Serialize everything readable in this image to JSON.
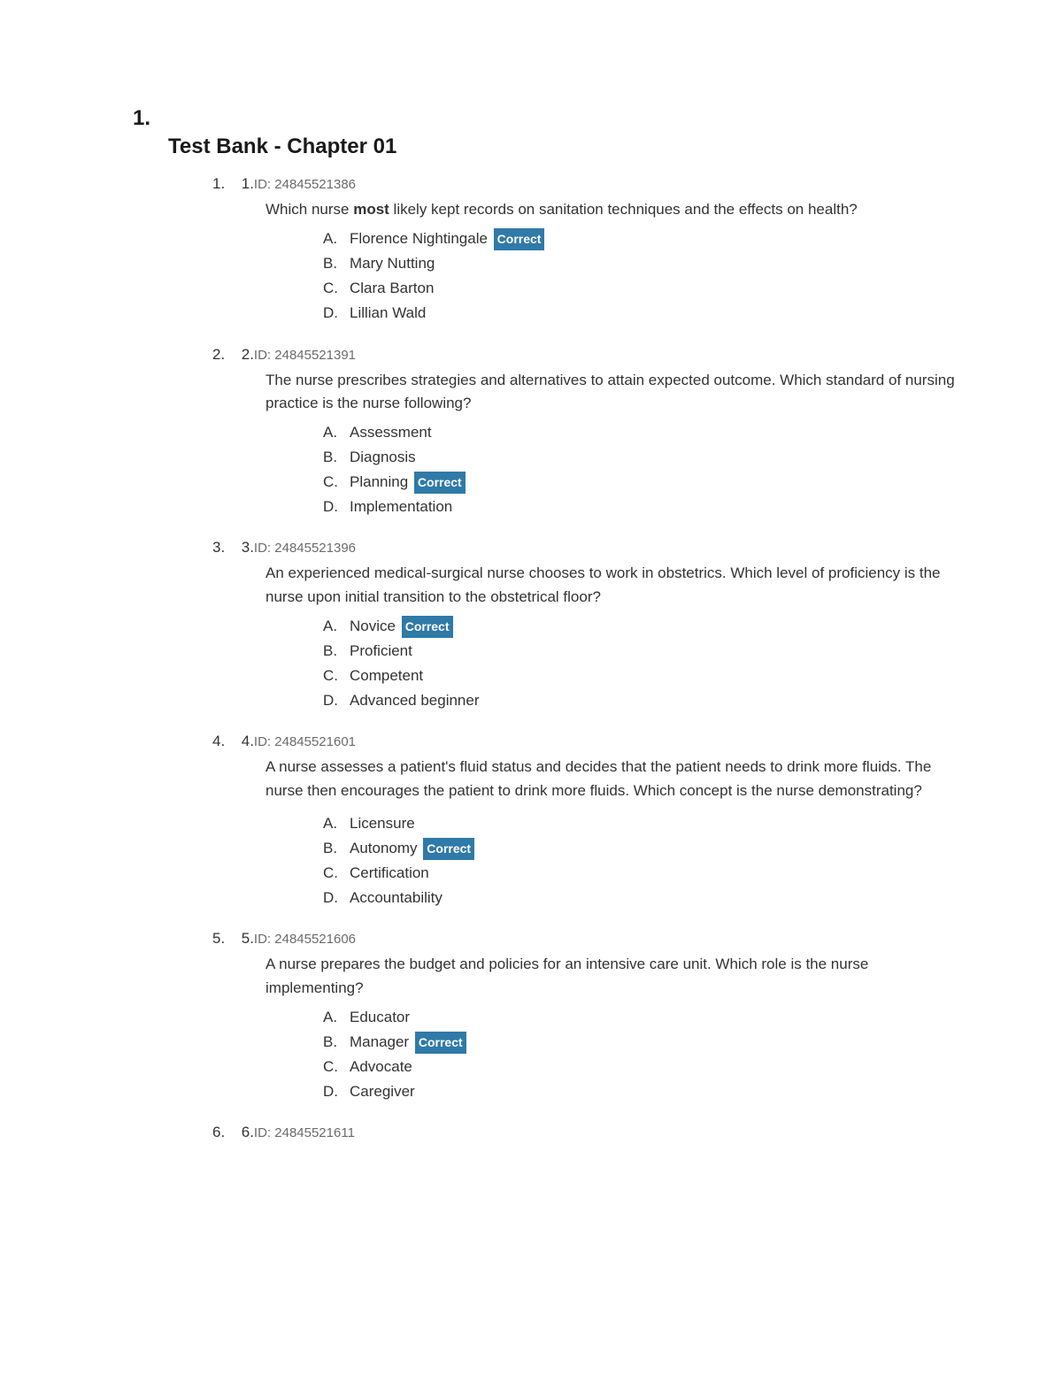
{
  "outer_number": "1.",
  "title": "Test Bank - Chapter 01",
  "id_prefix": "ID: ",
  "correct_label": "Correct",
  "colors": {
    "text": "#333333",
    "muted": "#6b6b6b",
    "badge_bg": "#2f7aa8",
    "badge_text": "#ffffff",
    "background": "#ffffff"
  },
  "questions": [
    {
      "list_index": "1.",
      "qnum": "1.",
      "id": "24845521386",
      "text_parts": [
        "Which nurse ",
        "most",
        " likely kept records on sanitation techniques and the effects on health?"
      ],
      "choices": [
        {
          "letter": "A.",
          "text": "Florence Nightingale",
          "correct": true
        },
        {
          "letter": "B.",
          "text": "Mary Nutting",
          "correct": false
        },
        {
          "letter": "C.",
          "text": "Clara Barton",
          "correct": false
        },
        {
          "letter": "D.",
          "text": "Lillian Wald",
          "correct": false
        }
      ],
      "extra_gap": false
    },
    {
      "list_index": "2.",
      "qnum": "2.",
      "id": "24845521391",
      "text_parts": [
        "The nurse prescribes strategies and alternatives to attain expected outcome. Which standard of nursing practice is the nurse following?"
      ],
      "choices": [
        {
          "letter": "A.",
          "text": "Assessment",
          "correct": false
        },
        {
          "letter": "B.",
          "text": "Diagnosis",
          "correct": false
        },
        {
          "letter": "C.",
          "text": "Planning",
          "correct": true
        },
        {
          "letter": "D.",
          "text": "Implementation",
          "correct": false
        }
      ],
      "extra_gap": false
    },
    {
      "list_index": "3.",
      "qnum": "3.",
      "id": "24845521396",
      "text_parts": [
        "An experienced medical-surgical nurse chooses to work in obstetrics. Which level of proficiency is the nurse upon initial transition to the obstetrical floor?"
      ],
      "choices": [
        {
          "letter": "A.",
          "text": "Novice",
          "correct": true
        },
        {
          "letter": "B.",
          "text": "Proficient",
          "correct": false
        },
        {
          "letter": "C.",
          "text": "Competent",
          "correct": false
        },
        {
          "letter": "D.",
          "text": "Advanced beginner",
          "correct": false
        }
      ],
      "extra_gap": false
    },
    {
      "list_index": "4.",
      "qnum": "4.",
      "id": "24845521601",
      "text_parts": [
        "A nurse assesses a patient's fluid status and decides that the patient needs to drink more fluids. The nurse then encourages the patient to drink more fluids. Which concept is the nurse demonstrating?"
      ],
      "choices": [
        {
          "letter": "A.",
          "text": "Licensure",
          "correct": false
        },
        {
          "letter": "B.",
          "text": "Autonomy",
          "correct": true
        },
        {
          "letter": "C.",
          "text": "Certification",
          "correct": false
        },
        {
          "letter": "D.",
          "text": "Accountability",
          "correct": false
        }
      ],
      "extra_gap": true
    },
    {
      "list_index": "5.",
      "qnum": "5.",
      "id": "24845521606",
      "text_parts": [
        "A nurse prepares the budget and policies for an intensive care unit. Which role is the nurse implementing?"
      ],
      "choices": [
        {
          "letter": "A.",
          "text": "Educator",
          "correct": false
        },
        {
          "letter": "B.",
          "text": "Manager",
          "correct": true
        },
        {
          "letter": "C.",
          "text": "Advocate",
          "correct": false
        },
        {
          "letter": "D.",
          "text": "Caregiver",
          "correct": false
        }
      ],
      "extra_gap": false
    },
    {
      "list_index": "6.",
      "qnum": "6.",
      "id": "24845521611",
      "text_parts": [],
      "choices": [],
      "extra_gap": false
    }
  ]
}
